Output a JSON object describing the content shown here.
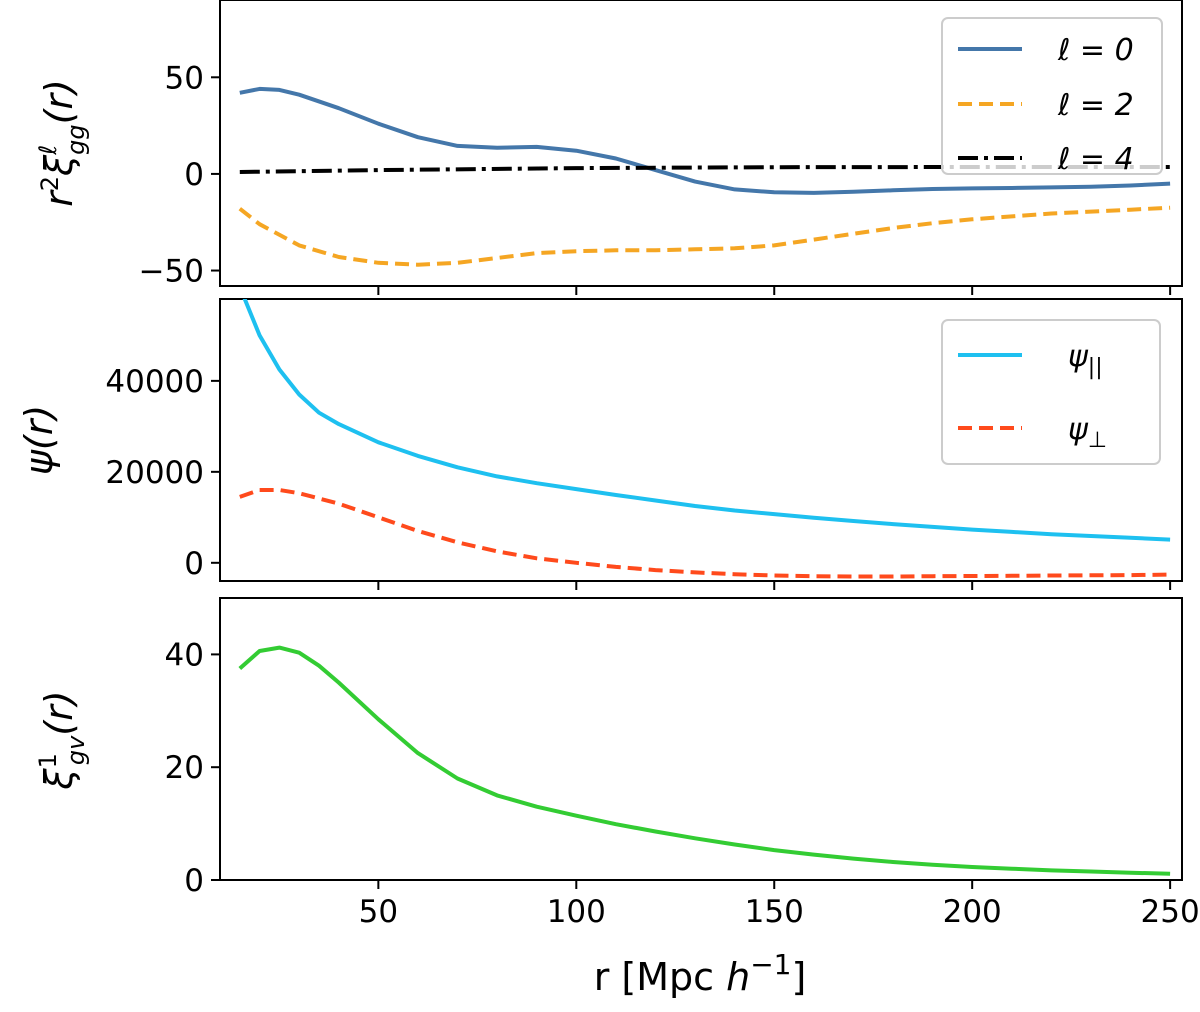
{
  "chart_data": [
    {
      "type": "line",
      "id": "top",
      "ylabel": "r²ξℓgg(r)",
      "xlim": [
        10,
        253
      ],
      "ylim": [
        -58,
        90
      ],
      "xticks": [
        50,
        100,
        150,
        200,
        250
      ],
      "yticks": [
        {
          "value": -50,
          "label": "−50"
        },
        {
          "value": 0,
          "label": "0"
        },
        {
          "value": 50,
          "label": "50"
        }
      ],
      "legend": {
        "position": "top-right",
        "entries": [
          "ℓ = 0",
          "ℓ = 2",
          "ℓ = 4"
        ]
      },
      "series": [
        {
          "name": "ℓ = 0",
          "color": "#4477aa",
          "dash": "solid",
          "x": [
            15,
            20,
            25,
            30,
            40,
            50,
            60,
            70,
            80,
            90,
            100,
            110,
            120,
            130,
            140,
            150,
            160,
            170,
            180,
            190,
            200,
            210,
            220,
            230,
            240,
            250
          ],
          "y": [
            42,
            44,
            43.5,
            41,
            34,
            26,
            19,
            14.5,
            13.5,
            14,
            12,
            8,
            2,
            -4,
            -8,
            -9.5,
            -9.8,
            -9.2,
            -8.5,
            -7.8,
            -7.5,
            -7.3,
            -7,
            -6.6,
            -6,
            -5
          ]
        },
        {
          "name": "ℓ = 2",
          "color": "#f5a623",
          "dash": "dashed",
          "x": [
            15,
            20,
            30,
            40,
            50,
            60,
            70,
            80,
            90,
            100,
            110,
            120,
            130,
            140,
            150,
            160,
            170,
            180,
            190,
            200,
            210,
            220,
            230,
            240,
            250
          ],
          "y": [
            -18,
            -26,
            -37,
            -43,
            -46,
            -47,
            -46,
            -43.5,
            -41,
            -40,
            -39.5,
            -39.5,
            -39,
            -38.5,
            -37,
            -34,
            -31,
            -28,
            -25.5,
            -23.5,
            -22,
            -20.5,
            -19.5,
            -18.5,
            -17.5
          ]
        },
        {
          "name": "ℓ = 4",
          "color": "#000000",
          "dash": "dashdot",
          "x": [
            15,
            50,
            100,
            150,
            200,
            250
          ],
          "y": [
            1,
            2,
            3,
            3.5,
            3.6,
            3.6
          ]
        }
      ]
    },
    {
      "type": "line",
      "id": "middle",
      "ylabel": "ψ(r)",
      "xlim": [
        10,
        253
      ],
      "ylim": [
        -4000,
        58000
      ],
      "xticks": [
        50,
        100,
        150,
        200,
        250
      ],
      "yticks": [
        {
          "value": 0,
          "label": "0"
        },
        {
          "value": 20000,
          "label": "20000"
        },
        {
          "value": 40000,
          "label": "40000"
        }
      ],
      "legend": {
        "position": "top-right",
        "entries": [
          "ψ||",
          "ψ⊥"
        ]
      },
      "series": [
        {
          "name": "ψ||",
          "color": "#1ec0f0",
          "dash": "solid",
          "x": [
            16,
            20,
            25,
            30,
            35,
            40,
            50,
            60,
            70,
            80,
            90,
            100,
            110,
            120,
            130,
            140,
            150,
            160,
            170,
            180,
            190,
            200,
            210,
            220,
            230,
            240,
            250
          ],
          "y": [
            58500,
            50000,
            42500,
            37000,
            33000,
            30500,
            26500,
            23500,
            21000,
            19000,
            17500,
            16200,
            14900,
            13700,
            12500,
            11500,
            10700,
            9900,
            9200,
            8500,
            7900,
            7300,
            6800,
            6300,
            5900,
            5500,
            5100
          ]
        },
        {
          "name": "ψ⊥",
          "color": "#ff4a1c",
          "dash": "dashed",
          "x": [
            15,
            20,
            25,
            30,
            40,
            50,
            60,
            70,
            80,
            90,
            100,
            110,
            120,
            130,
            140,
            150,
            160,
            170,
            180,
            190,
            200,
            210,
            220,
            230,
            240,
            250
          ],
          "y": [
            14500,
            16000,
            16000,
            15300,
            13000,
            10000,
            7000,
            4500,
            2500,
            1000,
            0,
            -900,
            -1600,
            -2100,
            -2500,
            -2800,
            -2950,
            -3000,
            -3000,
            -2950,
            -2900,
            -2850,
            -2800,
            -2750,
            -2700,
            -2600
          ]
        }
      ]
    },
    {
      "type": "line",
      "id": "bottom",
      "ylabel": "ξ1gv(r)",
      "xlabel": "r [Mpc h⁻¹]",
      "xlim": [
        10,
        253
      ],
      "ylim": [
        0,
        50
      ],
      "xticks": [
        50,
        100,
        150,
        200,
        250
      ],
      "yticks": [
        {
          "value": 0,
          "label": "0"
        },
        {
          "value": 20,
          "label": "20"
        },
        {
          "value": 40,
          "label": "40"
        }
      ],
      "series": [
        {
          "name": "ξ1gv",
          "color": "#33cc33",
          "dash": "solid",
          "x": [
            15,
            20,
            25,
            30,
            35,
            40,
            50,
            60,
            70,
            80,
            90,
            100,
            110,
            120,
            130,
            140,
            150,
            160,
            170,
            180,
            190,
            200,
            210,
            220,
            230,
            240,
            250
          ],
          "y": [
            37.5,
            40.6,
            41.2,
            40.3,
            38,
            35,
            28.5,
            22.5,
            18,
            15,
            13,
            11.4,
            9.9,
            8.6,
            7.4,
            6.3,
            5.3,
            4.5,
            3.8,
            3.2,
            2.7,
            2.3,
            2.0,
            1.7,
            1.5,
            1.3,
            1.1
          ]
        }
      ]
    }
  ],
  "xtick_labels": [
    "50",
    "100",
    "150",
    "200",
    "250"
  ],
  "labels": {
    "top_ylabel_base": "r",
    "top_ylabel_sup2": "2",
    "top_ylabel_xi": "ξ",
    "top_ylabel_sub": "gg",
    "top_ylabel_sup": "ℓ",
    "top_ylabel_arg": "(r)",
    "mid_ylabel": "ψ(r)",
    "bot_ylabel_xi": "ξ",
    "bot_ylabel_sub": "gv",
    "bot_ylabel_sup": "1",
    "bot_ylabel_arg": "(r)",
    "xlabel_main": "r [Mpc ",
    "xlabel_h": "h",
    "xlabel_sup": "−1",
    "xlabel_close": "]",
    "legend_top": [
      "ℓ = 0",
      "ℓ = 2",
      "ℓ = 4"
    ],
    "legend_mid_psi": "ψ",
    "legend_mid_par_sub": "||",
    "legend_mid_perp_sub": "⊥"
  }
}
